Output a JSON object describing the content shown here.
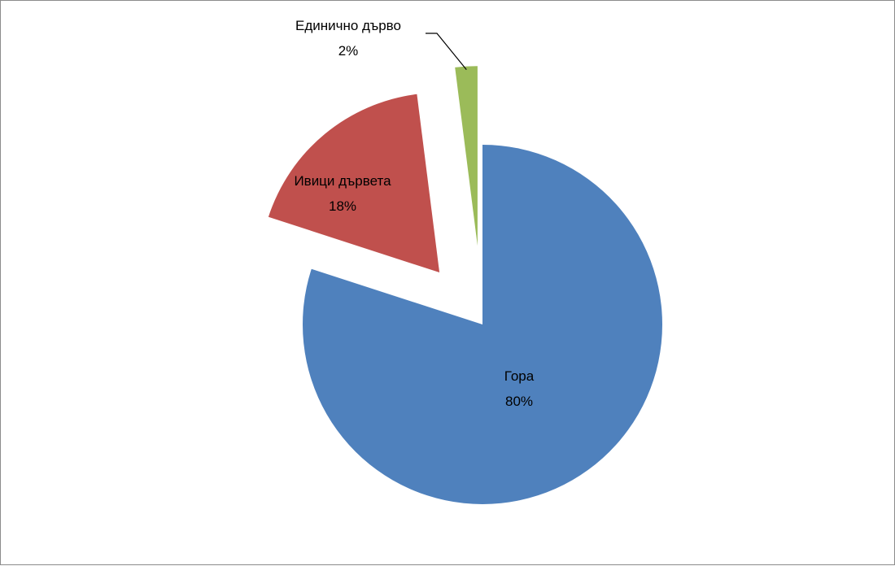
{
  "chart_data": {
    "type": "pie",
    "title": "",
    "exploded": true,
    "slices": [
      {
        "name": "Гора",
        "value": 80,
        "label": "80%",
        "color": "#4F81BD"
      },
      {
        "name": "Ивици дървета",
        "value": 18,
        "label": "18%",
        "color": "#C0504D"
      },
      {
        "name": "Единично дърво",
        "value": 2,
        "label": "2%",
        "color": "#9BBB59"
      }
    ],
    "legend": "none"
  }
}
